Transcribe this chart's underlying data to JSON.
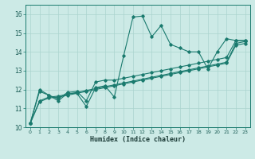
{
  "xlabel": "Humidex (Indice chaleur)",
  "bg_color": "#cceae6",
  "grid_color": "#aad4cf",
  "line_color": "#1a7a6e",
  "xlim": [
    -0.5,
    23.5
  ],
  "ylim": [
    10,
    16.5
  ],
  "xticks": [
    0,
    1,
    2,
    3,
    4,
    5,
    6,
    7,
    8,
    9,
    10,
    11,
    12,
    13,
    14,
    15,
    16,
    17,
    18,
    19,
    20,
    21,
    22,
    23
  ],
  "yticks": [
    10,
    11,
    12,
    13,
    14,
    15,
    16
  ],
  "series": [
    [
      10.2,
      12.0,
      11.7,
      11.4,
      11.8,
      11.8,
      11.1,
      12.1,
      12.2,
      11.6,
      13.8,
      15.85,
      15.9,
      14.8,
      15.4,
      14.4,
      14.2,
      14.0,
      14.0,
      13.1,
      14.0,
      14.7,
      14.6,
      14.6
    ],
    [
      10.2,
      11.9,
      11.7,
      11.5,
      11.85,
      11.9,
      11.4,
      12.4,
      12.5,
      12.5,
      12.6,
      12.7,
      12.8,
      12.9,
      13.0,
      13.1,
      13.2,
      13.3,
      13.4,
      13.5,
      13.6,
      13.7,
      14.6,
      14.6
    ],
    [
      10.2,
      11.4,
      11.6,
      11.65,
      11.75,
      11.85,
      11.95,
      12.05,
      12.15,
      12.25,
      12.35,
      12.45,
      12.55,
      12.65,
      12.75,
      12.85,
      12.95,
      13.05,
      13.15,
      13.25,
      13.35,
      13.45,
      14.45,
      14.55
    ],
    [
      10.2,
      11.35,
      11.55,
      11.6,
      11.7,
      11.8,
      11.9,
      12.0,
      12.1,
      12.2,
      12.3,
      12.4,
      12.5,
      12.6,
      12.7,
      12.8,
      12.9,
      13.0,
      13.1,
      13.2,
      13.3,
      13.4,
      14.35,
      14.45
    ]
  ]
}
